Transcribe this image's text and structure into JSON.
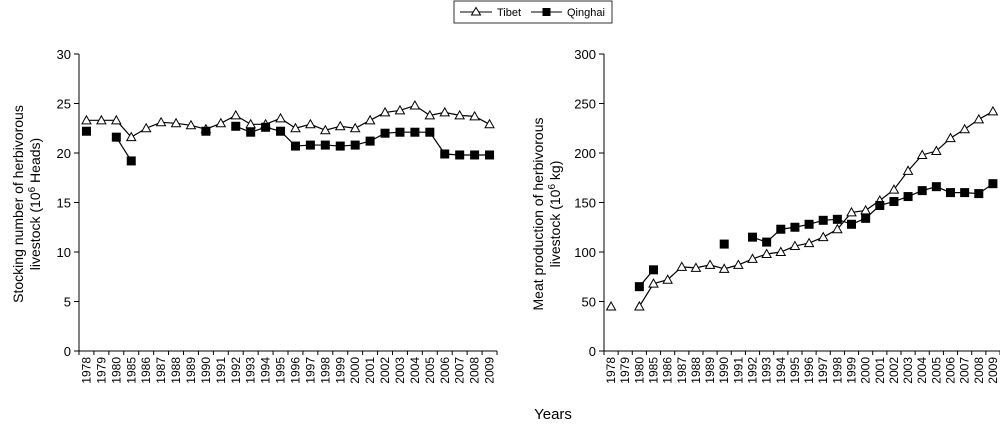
{
  "figure": {
    "xlabel": "Years",
    "legend": {
      "placement": "top-center"
    }
  },
  "chart_data": [
    {
      "type": "line",
      "title": "",
      "xlabel": "",
      "ylabel": "Stocking number of herbivorous livestock (10⁶ Heads)",
      "ylabel_line1": "Stocking number of herbivorous",
      "ylabel_line2_pre": "livestock (10",
      "ylabel_line2_sup": "6",
      "ylabel_line2_post": " Heads)",
      "ylim": [
        0,
        30
      ],
      "yticks": [
        0,
        5,
        10,
        15,
        20,
        25,
        30
      ],
      "grid": false,
      "categories": [
        "1978",
        "1979",
        "1980",
        "1985",
        "1986",
        "1987",
        "1988",
        "1989",
        "1990",
        "1991",
        "1992",
        "1993",
        "1994",
        "1995",
        "1996",
        "1997",
        "1998",
        "1999",
        "2000",
        "2001",
        "2002",
        "2003",
        "2004",
        "2005",
        "2006",
        "2007",
        "2008",
        "2009"
      ],
      "series": [
        {
          "name": "Tibet",
          "marker": "open-triangle",
          "values": [
            23.3,
            23.3,
            23.3,
            21.6,
            22.5,
            23.1,
            23.0,
            22.8,
            22.4,
            23.0,
            23.8,
            22.9,
            22.9,
            23.5,
            22.5,
            22.9,
            22.3,
            22.7,
            22.5,
            23.3,
            24.1,
            24.3,
            24.8,
            23.8,
            24.1,
            23.8,
            23.7,
            22.9
          ]
        },
        {
          "name": "Qinghai",
          "marker": "filled-square",
          "values": [
            22.2,
            null,
            21.6,
            19.2,
            null,
            null,
            null,
            null,
            22.2,
            null,
            22.7,
            22.1,
            22.6,
            22.2,
            20.7,
            20.8,
            20.8,
            20.7,
            20.8,
            21.2,
            22.0,
            22.1,
            22.1,
            22.1,
            19.9,
            19.8,
            19.8,
            19.8
          ]
        }
      ]
    },
    {
      "type": "line",
      "title": "",
      "xlabel": "",
      "ylabel": "Meat production of herbivorous livestock (10⁶ kg)",
      "ylabel_line1": "Meat production of herbivorous",
      "ylabel_line2_pre": "livestock (10",
      "ylabel_line2_sup": "6",
      "ylabel_line2_post": " kg)",
      "ylim": [
        0,
        300
      ],
      "yticks": [
        0,
        50,
        100,
        150,
        200,
        250,
        300
      ],
      "grid": false,
      "categories": [
        "1978",
        "1979",
        "1980",
        "1985",
        "1986",
        "1987",
        "1988",
        "1989",
        "1990",
        "1991",
        "1992",
        "1993",
        "1994",
        "1995",
        "1996",
        "1997",
        "1998",
        "1999",
        "2000",
        "2001",
        "2002",
        "2003",
        "2004",
        "2005",
        "2006",
        "2007",
        "2008",
        "2009"
      ],
      "series": [
        {
          "name": "Tibet",
          "marker": "open-triangle",
          "values": [
            45,
            null,
            45,
            68,
            72,
            85,
            84,
            87,
            83,
            87,
            93,
            98,
            100,
            106,
            109,
            115,
            123,
            140,
            142,
            152,
            163,
            182,
            198,
            202,
            215,
            224,
            234,
            242
          ]
        },
        {
          "name": "Qinghai",
          "marker": "filled-square",
          "values": [
            null,
            null,
            65,
            82,
            null,
            null,
            null,
            null,
            108,
            null,
            115,
            110,
            123,
            125,
            128,
            132,
            133,
            128,
            134,
            147,
            151,
            156,
            162,
            166,
            160,
            160,
            159,
            169
          ]
        }
      ]
    }
  ]
}
